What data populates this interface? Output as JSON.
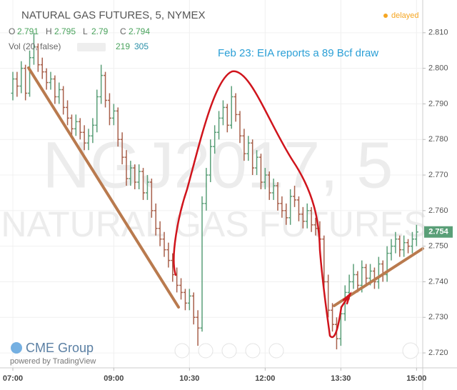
{
  "chart_data": {
    "type": "ohlc",
    "title": "NATURAL GAS FUTURES, 5, NYMEX",
    "status": "delayed",
    "ohlc_legend": [
      {
        "label": "O",
        "value": 2.791
      },
      {
        "label": "H",
        "value": 2.795
      },
      {
        "label": "L",
        "value": 2.79
      },
      {
        "label": "C",
        "value": 2.794
      }
    ],
    "volume_legend": {
      "label": "Vol (20, false)",
      "values": [
        219,
        305
      ]
    },
    "annotation": "Feb 23: EIA reports a 89 Bcf draw",
    "watermark": [
      "NGJ2017, 5",
      "NATURAL GAS FUTURES"
    ],
    "branding": [
      "CME Group",
      "powered by TradingView"
    ],
    "last_price": 2.754,
    "up_color": "#5a9f78",
    "down_color": "#a8604b",
    "grid": true,
    "ylim": [
      2.7158,
      2.8192
    ],
    "yticks": [
      {
        "value": 2.72,
        "label": "2.720"
      },
      {
        "value": 2.73,
        "label": "2.730"
      },
      {
        "value": 2.74,
        "label": "2.740"
      },
      {
        "value": 2.75,
        "label": "2.750"
      },
      {
        "value": 2.76,
        "label": "2.760"
      },
      {
        "value": 2.77,
        "label": "2.770"
      },
      {
        "value": 2.78,
        "label": "2.780"
      },
      {
        "value": 2.79,
        "label": "2.790"
      },
      {
        "value": 2.8,
        "label": "2.800"
      },
      {
        "value": 2.81,
        "label": "2.810"
      }
    ],
    "xticks": [
      "07:00",
      "09:00",
      "10:30",
      "12:00",
      "13:30",
      "15:00"
    ],
    "x": [
      "07:00",
      "07:05",
      "07:10",
      "07:15",
      "07:20",
      "07:25",
      "07:30",
      "07:35",
      "07:40",
      "07:45",
      "07:50",
      "07:55",
      "08:00",
      "08:05",
      "08:10",
      "08:15",
      "08:20",
      "08:25",
      "08:30",
      "08:35",
      "08:40",
      "08:45",
      "08:50",
      "08:55",
      "09:00",
      "09:05",
      "09:10",
      "09:15",
      "09:20",
      "09:25",
      "09:30",
      "09:35",
      "09:40",
      "09:45",
      "09:50",
      "09:55",
      "10:00",
      "10:05",
      "10:10",
      "10:15",
      "10:20",
      "10:25",
      "10:30",
      "10:35",
      "10:40",
      "10:45",
      "10:50",
      "10:55",
      "11:00",
      "11:05",
      "11:10",
      "11:15",
      "11:20",
      "11:25",
      "11:30",
      "11:35",
      "11:40",
      "11:45",
      "11:50",
      "11:55",
      "12:00",
      "12:05",
      "12:10",
      "12:15",
      "12:20",
      "12:25",
      "12:30",
      "12:35",
      "12:40",
      "12:45",
      "12:50",
      "12:55",
      "13:00",
      "13:05",
      "13:10",
      "13:15",
      "13:20",
      "13:25",
      "13:30",
      "13:35",
      "13:40",
      "13:45",
      "13:50",
      "13:55",
      "14:00",
      "14:05",
      "14:10",
      "14:15",
      "14:20",
      "14:25",
      "14:30",
      "14:35",
      "14:40",
      "14:45",
      "14:50",
      "14:55",
      "15:00"
    ],
    "ohlc": [
      [
        2.793,
        2.799,
        2.791,
        2.797
      ],
      [
        2.797,
        2.799,
        2.792,
        2.795
      ],
      [
        2.795,
        2.802,
        2.793,
        2.8
      ],
      [
        2.8,
        2.801,
        2.791,
        2.793
      ],
      [
        2.793,
        2.805,
        2.792,
        2.803
      ],
      [
        2.803,
        2.81,
        2.801,
        2.806
      ],
      [
        2.806,
        2.807,
        2.799,
        2.801
      ],
      [
        2.801,
        2.803,
        2.797,
        2.799
      ],
      [
        2.799,
        2.8,
        2.794,
        2.796
      ],
      [
        2.796,
        2.799,
        2.794,
        2.797
      ],
      [
        2.797,
        2.798,
        2.79,
        2.792
      ],
      [
        2.792,
        2.796,
        2.79,
        2.794
      ],
      [
        2.794,
        2.795,
        2.787,
        2.789
      ],
      [
        2.789,
        2.791,
        2.784,
        2.786
      ],
      [
        2.786,
        2.787,
        2.781,
        2.783
      ],
      [
        2.783,
        2.787,
        2.781,
        2.785
      ],
      [
        2.785,
        2.786,
        2.78,
        2.782
      ],
      [
        2.782,
        2.784,
        2.777,
        2.779
      ],
      [
        2.779,
        2.783,
        2.777,
        2.781
      ],
      [
        2.781,
        2.786,
        2.779,
        2.784
      ],
      [
        2.784,
        2.794,
        2.782,
        2.792
      ],
      [
        2.792,
        2.801,
        2.79,
        2.798
      ],
      [
        2.798,
        2.799,
        2.789,
        2.791
      ],
      [
        2.791,
        2.793,
        2.784,
        2.786
      ],
      [
        2.786,
        2.79,
        2.784,
        2.788
      ],
      [
        2.788,
        2.789,
        2.778,
        2.78
      ],
      [
        2.78,
        2.782,
        2.773,
        2.775
      ],
      [
        2.775,
        2.777,
        2.767,
        2.769
      ],
      [
        2.769,
        2.774,
        2.767,
        2.772
      ],
      [
        2.772,
        2.773,
        2.766,
        2.768
      ],
      [
        2.768,
        2.773,
        2.766,
        2.771
      ],
      [
        2.771,
        2.772,
        2.763,
        2.765
      ],
      [
        2.765,
        2.77,
        2.763,
        2.768
      ],
      [
        2.768,
        2.769,
        2.758,
        2.76
      ],
      [
        2.76,
        2.762,
        2.753,
        2.755
      ],
      [
        2.755,
        2.757,
        2.75,
        2.752
      ],
      [
        2.752,
        2.754,
        2.747,
        2.749
      ],
      [
        2.749,
        2.751,
        2.744,
        2.746
      ],
      [
        2.746,
        2.748,
        2.74,
        2.742
      ],
      [
        2.742,
        2.744,
        2.737,
        2.739
      ],
      [
        2.739,
        2.741,
        2.735,
        2.737
      ],
      [
        2.737,
        2.738,
        2.732,
        2.734
      ],
      [
        2.734,
        2.738,
        2.732,
        2.736
      ],
      [
        2.736,
        2.737,
        2.728,
        2.73
      ],
      [
        2.73,
        2.732,
        2.722,
        2.727
      ],
      [
        2.727,
        2.764,
        2.726,
        2.762
      ],
      [
        2.762,
        2.772,
        2.76,
        2.77
      ],
      [
        2.77,
        2.78,
        2.768,
        2.778
      ],
      [
        2.778,
        2.784,
        2.776,
        2.782
      ],
      [
        2.782,
        2.788,
        2.78,
        2.786
      ],
      [
        2.786,
        2.791,
        2.784,
        2.789
      ],
      [
        2.789,
        2.79,
        2.782,
        2.784
      ],
      [
        2.784,
        2.795,
        2.783,
        2.792
      ],
      [
        2.792,
        2.793,
        2.785,
        2.787
      ],
      [
        2.787,
        2.788,
        2.779,
        2.781
      ],
      [
        2.781,
        2.783,
        2.774,
        2.776
      ],
      [
        2.776,
        2.781,
        2.774,
        2.779
      ],
      [
        2.779,
        2.78,
        2.77,
        2.772
      ],
      [
        2.772,
        2.777,
        2.77,
        2.775
      ],
      [
        2.775,
        2.776,
        2.766,
        2.768
      ],
      [
        2.768,
        2.772,
        2.766,
        2.77
      ],
      [
        2.77,
        2.771,
        2.763,
        2.765
      ],
      [
        2.765,
        2.769,
        2.763,
        2.767
      ],
      [
        2.767,
        2.768,
        2.76,
        2.762
      ],
      [
        2.762,
        2.764,
        2.758,
        2.76
      ],
      [
        2.76,
        2.762,
        2.756,
        2.758
      ],
      [
        2.758,
        2.766,
        2.756,
        2.764
      ],
      [
        2.764,
        2.767,
        2.761,
        2.763
      ],
      [
        2.763,
        2.764,
        2.757,
        2.759
      ],
      [
        2.759,
        2.761,
        2.755,
        2.757
      ],
      [
        2.757,
        2.762,
        2.755,
        2.76
      ],
      [
        2.76,
        2.761,
        2.754,
        2.756
      ],
      [
        2.756,
        2.758,
        2.753,
        2.755
      ],
      [
        2.755,
        2.757,
        2.75,
        2.752
      ],
      [
        2.752,
        2.753,
        2.738,
        2.74
      ],
      [
        2.74,
        2.742,
        2.73,
        2.732
      ],
      [
        2.732,
        2.734,
        2.726,
        2.728
      ],
      [
        2.728,
        2.73,
        2.721,
        2.724
      ],
      [
        2.724,
        2.733,
        2.722,
        2.731
      ],
      [
        2.731,
        2.739,
        2.729,
        2.737
      ],
      [
        2.737,
        2.742,
        2.735,
        2.74
      ],
      [
        2.74,
        2.745,
        2.738,
        2.742
      ],
      [
        2.742,
        2.743,
        2.737,
        2.739
      ],
      [
        2.739,
        2.746,
        2.737,
        2.744
      ],
      [
        2.744,
        2.745,
        2.739,
        2.741
      ],
      [
        2.741,
        2.745,
        2.739,
        2.743
      ],
      [
        2.743,
        2.744,
        2.738,
        2.74
      ],
      [
        2.74,
        2.747,
        2.738,
        2.745
      ],
      [
        2.745,
        2.746,
        2.74,
        2.742
      ],
      [
        2.742,
        2.75,
        2.74,
        2.748
      ],
      [
        2.748,
        2.752,
        2.746,
        2.75
      ],
      [
        2.75,
        2.754,
        2.748,
        2.752
      ],
      [
        2.752,
        2.753,
        2.747,
        2.749
      ],
      [
        2.749,
        2.753,
        2.747,
        2.751
      ],
      [
        2.751,
        2.752,
        2.748,
        2.75
      ],
      [
        2.75,
        2.754,
        2.748,
        2.752
      ],
      [
        2.752,
        2.756,
        2.75,
        2.754
      ]
    ]
  }
}
